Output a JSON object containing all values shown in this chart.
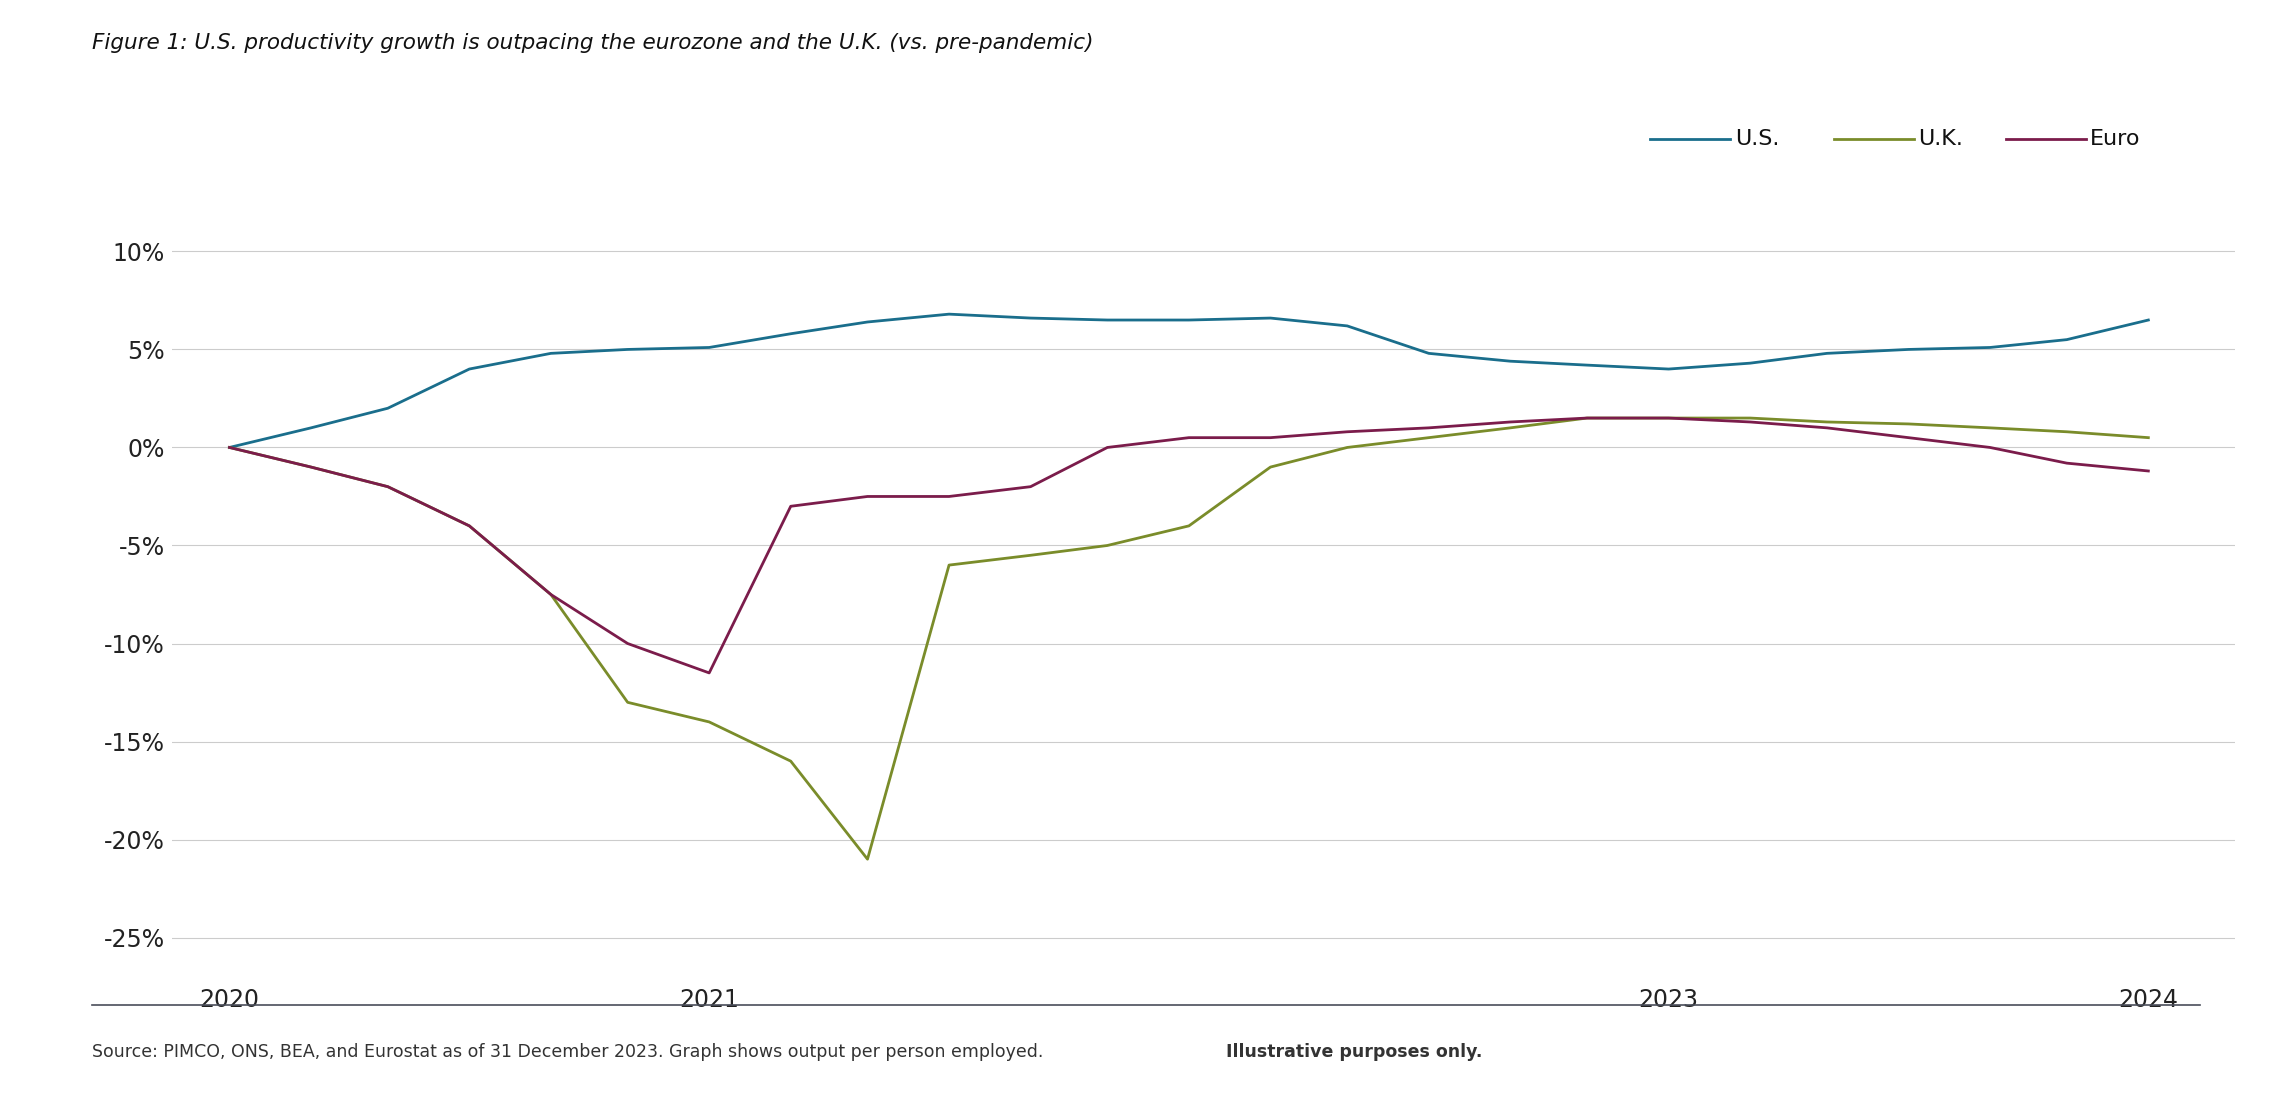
{
  "title": "Figure 1: U.S. productivity growth is outpacing the eurozone and the U.K. (vs. pre-pandemic)",
  "footnote_normal": "Source: PIMCO, ONS, BEA, and Eurostat as of 31 December 2023. Graph shows output per person employed. ",
  "footnote_bold": "Illustrative purposes only.",
  "ylim": [
    -0.27,
    0.115
  ],
  "yticks": [
    0.1,
    0.05,
    0.0,
    -0.05,
    -0.1,
    -0.15,
    -0.2,
    -0.25
  ],
  "legend": [
    "U.S.",
    "U.K.",
    "Euro"
  ],
  "colors": {
    "US": "#1a6e8c",
    "UK": "#7a8c2a",
    "Euro": "#7b1c4b"
  },
  "separator_color": "#4a4e5a",
  "grid_color": "#cccccc",
  "background_color": "#ffffff",
  "US": {
    "x": [
      2020.0,
      2020.17,
      2020.33,
      2020.5,
      2020.67,
      2020.83,
      2021.0,
      2021.17,
      2021.33,
      2021.5,
      2021.67,
      2021.83,
      2022.0,
      2022.17,
      2022.33,
      2022.5,
      2022.67,
      2022.83,
      2023.0,
      2023.17,
      2023.33,
      2023.5,
      2023.67,
      2023.83,
      2024.0
    ],
    "y": [
      0.0,
      0.01,
      0.02,
      0.04,
      0.048,
      0.05,
      0.051,
      0.058,
      0.064,
      0.068,
      0.066,
      0.065,
      0.065,
      0.066,
      0.062,
      0.048,
      0.044,
      0.042,
      0.04,
      0.043,
      0.048,
      0.05,
      0.051,
      0.055,
      0.065
    ]
  },
  "UK": {
    "x": [
      2020.0,
      2020.17,
      2020.33,
      2020.5,
      2020.67,
      2020.83,
      2021.0,
      2021.17,
      2021.33,
      2021.5,
      2021.67,
      2021.83,
      2022.0,
      2022.17,
      2022.33,
      2022.5,
      2022.67,
      2022.83,
      2023.0,
      2023.17,
      2023.33,
      2023.5,
      2023.67,
      2023.83,
      2024.0
    ],
    "y": [
      0.0,
      -0.01,
      -0.02,
      -0.04,
      -0.075,
      -0.13,
      -0.14,
      -0.16,
      -0.21,
      -0.06,
      -0.055,
      -0.05,
      -0.04,
      -0.01,
      0.0,
      0.005,
      0.01,
      0.015,
      0.015,
      0.015,
      0.013,
      0.012,
      0.01,
      0.008,
      0.005
    ]
  },
  "Euro": {
    "x": [
      2020.0,
      2020.17,
      2020.33,
      2020.5,
      2020.67,
      2020.83,
      2021.0,
      2021.17,
      2021.33,
      2021.5,
      2021.67,
      2021.83,
      2022.0,
      2022.17,
      2022.33,
      2022.5,
      2022.67,
      2022.83,
      2023.0,
      2023.17,
      2023.33,
      2023.5,
      2023.67,
      2023.83,
      2024.0
    ],
    "y": [
      0.0,
      -0.01,
      -0.02,
      -0.04,
      -0.075,
      -0.1,
      -0.115,
      -0.03,
      -0.025,
      -0.025,
      -0.02,
      0.0,
      0.005,
      0.005,
      0.008,
      0.01,
      0.013,
      0.015,
      0.015,
      0.013,
      0.01,
      0.005,
      0.0,
      -0.008,
      -0.012
    ]
  },
  "xtick_positions": [
    2020.0,
    2021.0,
    2023.0,
    2024.0
  ],
  "xtick_labels": [
    "2020",
    "2021",
    "2023",
    "2024"
  ]
}
